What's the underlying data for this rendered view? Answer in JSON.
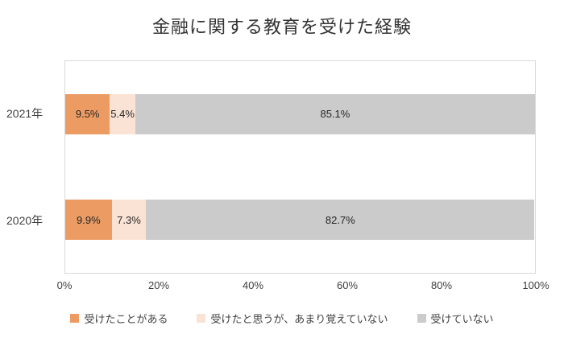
{
  "chart_data": {
    "type": "bar",
    "orientation": "horizontal",
    "stacked": true,
    "title": "金融に関する教育を受けた経験",
    "categories": [
      "2021年",
      "2020年"
    ],
    "series": [
      {
        "name": "受けたことがある",
        "color": "#EC9C63",
        "values": [
          9.5,
          9.9
        ]
      },
      {
        "name": "受けたと思うが、あまり覚えていない",
        "color": "#FAE3D4",
        "values": [
          5.4,
          7.3
        ]
      },
      {
        "name": "受けていない",
        "color": "#CBCBCB",
        "values": [
          85.1,
          82.7
        ]
      }
    ],
    "xlim": [
      0,
      100
    ],
    "x_ticks": [
      "0%",
      "20%",
      "40%",
      "60%",
      "80%",
      "100%"
    ],
    "value_suffix": "%",
    "grid": false,
    "legend_position": "bottom",
    "plot_border_color": "#D9D9D9"
  }
}
